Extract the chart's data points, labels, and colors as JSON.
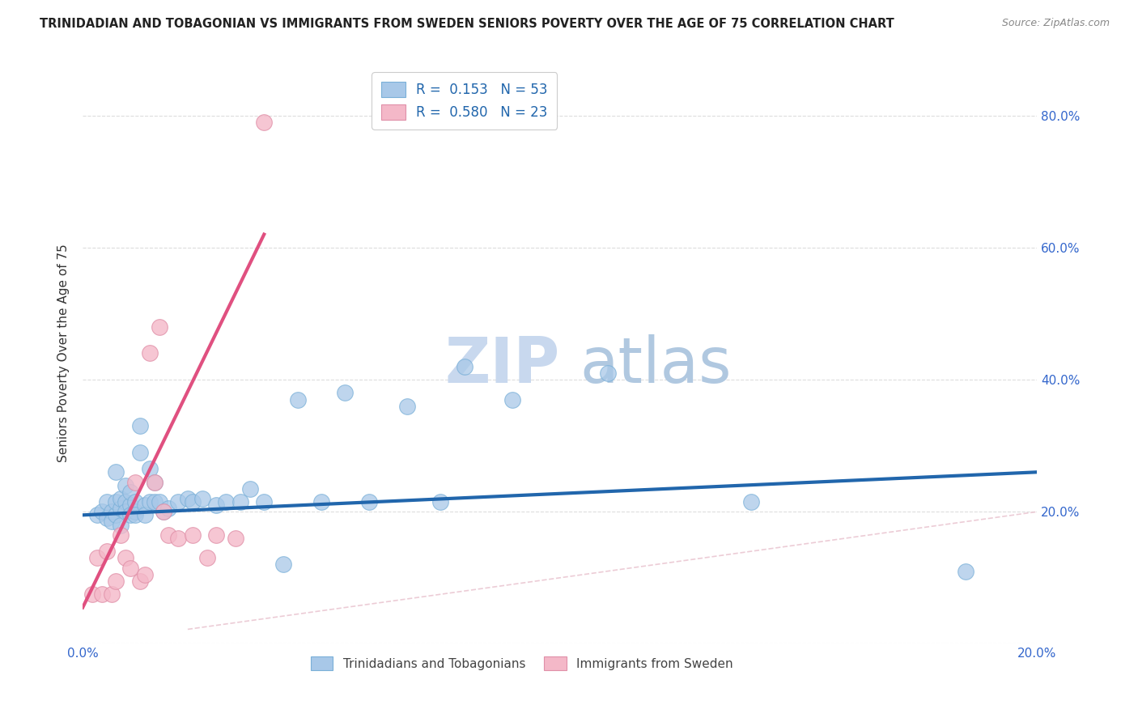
{
  "title": "TRINIDADIAN AND TOBAGONIAN VS IMMIGRANTS FROM SWEDEN SENIORS POVERTY OVER THE AGE OF 75 CORRELATION CHART",
  "source": "Source: ZipAtlas.com",
  "ylabel": "Seniors Poverty Over the Age of 75",
  "xlim": [
    0.0,
    0.2
  ],
  "ylim": [
    0.0,
    0.88
  ],
  "blue_color": "#a8c8e8",
  "pink_color": "#f4b8c8",
  "blue_line_color": "#2166ac",
  "pink_line_color": "#e05080",
  "diag_line_color": "#e8c0cc",
  "watermark_zip_color": "#ccd8ee",
  "watermark_atlas_color": "#a8c0d8",
  "blue_scatter_x": [
    0.003,
    0.004,
    0.005,
    0.005,
    0.006,
    0.006,
    0.007,
    0.007,
    0.007,
    0.008,
    0.008,
    0.008,
    0.009,
    0.009,
    0.009,
    0.01,
    0.01,
    0.01,
    0.011,
    0.011,
    0.011,
    0.012,
    0.012,
    0.013,
    0.013,
    0.014,
    0.014,
    0.015,
    0.015,
    0.016,
    0.017,
    0.018,
    0.02,
    0.022,
    0.023,
    0.025,
    0.028,
    0.03,
    0.033,
    0.035,
    0.038,
    0.042,
    0.045,
    0.05,
    0.055,
    0.06,
    0.068,
    0.075,
    0.08,
    0.09,
    0.11,
    0.14,
    0.185
  ],
  "blue_scatter_y": [
    0.195,
    0.2,
    0.19,
    0.215,
    0.2,
    0.185,
    0.195,
    0.215,
    0.26,
    0.205,
    0.22,
    0.18,
    0.215,
    0.2,
    0.24,
    0.21,
    0.195,
    0.23,
    0.2,
    0.215,
    0.195,
    0.29,
    0.33,
    0.21,
    0.195,
    0.265,
    0.215,
    0.215,
    0.245,
    0.215,
    0.2,
    0.205,
    0.215,
    0.22,
    0.215,
    0.22,
    0.21,
    0.215,
    0.215,
    0.235,
    0.215,
    0.12,
    0.37,
    0.215,
    0.38,
    0.215,
    0.36,
    0.215,
    0.42,
    0.37,
    0.41,
    0.215,
    0.11
  ],
  "pink_scatter_x": [
    0.002,
    0.003,
    0.004,
    0.005,
    0.006,
    0.007,
    0.008,
    0.009,
    0.01,
    0.011,
    0.012,
    0.013,
    0.014,
    0.015,
    0.016,
    0.017,
    0.018,
    0.02,
    0.023,
    0.026,
    0.028,
    0.032,
    0.038
  ],
  "pink_scatter_y": [
    0.075,
    0.13,
    0.075,
    0.14,
    0.075,
    0.095,
    0.165,
    0.13,
    0.115,
    0.245,
    0.095,
    0.105,
    0.44,
    0.245,
    0.48,
    0.2,
    0.165,
    0.16,
    0.165,
    0.13,
    0.165,
    0.16,
    0.79
  ],
  "blue_line_x": [
    0.0,
    0.2
  ],
  "blue_line_y": [
    0.195,
    0.26
  ],
  "pink_line_x": [
    0.0,
    0.038
  ],
  "pink_line_y": [
    0.055,
    0.62
  ],
  "diag_line_x": [
    0.022,
    0.2
  ],
  "diag_line_y": [
    0.022,
    0.2
  ],
  "figsize": [
    14.06,
    8.92
  ],
  "dpi": 100
}
